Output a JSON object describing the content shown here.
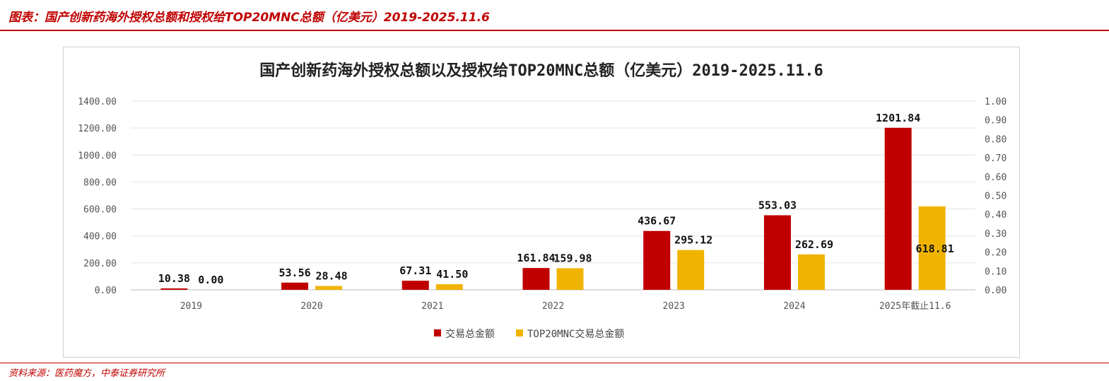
{
  "header": {
    "title": "图表：国产创新药海外授权总额和授权给TOP20MNC总额（亿美元）2019-2025.11.6"
  },
  "footer": {
    "source": "资料来源：医药魔方，中泰证券研究所"
  },
  "colors": {
    "accent": "#c00000",
    "series1": "#c00000",
    "series2": "#f0b400"
  },
  "chart_data": {
    "type": "bar",
    "title": "国产创新药海外授权总额以及授权给TOP20MNC总额（亿美元）2019-2025.11.6",
    "categories": [
      "2019",
      "2020",
      "2021",
      "2022",
      "2023",
      "2024",
      "2025年截止11.6"
    ],
    "series": [
      {
        "name": "交易总金额",
        "values": [
          10.38,
          53.56,
          67.31,
          161.84,
          436.67,
          553.03,
          1201.84
        ],
        "labels": [
          "10.38",
          "53.56",
          "67.31",
          "161.84",
          "436.67",
          "553.03",
          "1201.84"
        ]
      },
      {
        "name": "TOP20MNC交易总金额",
        "values": [
          0.0,
          28.48,
          41.5,
          159.98,
          295.12,
          262.69,
          618.81
        ],
        "labels": [
          "0.00",
          "28.48",
          "41.50",
          "159.98",
          "295.12",
          "262.69",
          "618.81"
        ]
      }
    ],
    "ylim": [
      0,
      1400
    ],
    "y_ticks": [
      "1400.00",
      "1200.00",
      "1000.00",
      "800.00",
      "600.00",
      "400.00",
      "200.00",
      "0.00"
    ],
    "y2lim": [
      0,
      1
    ],
    "y2_ticks": [
      "1.00",
      "0.90",
      "0.80",
      "0.70",
      "0.60",
      "0.50",
      "0.40",
      "0.30",
      "0.20",
      "0.10",
      "0.00"
    ],
    "grid": true,
    "legend": "bottom-center"
  }
}
